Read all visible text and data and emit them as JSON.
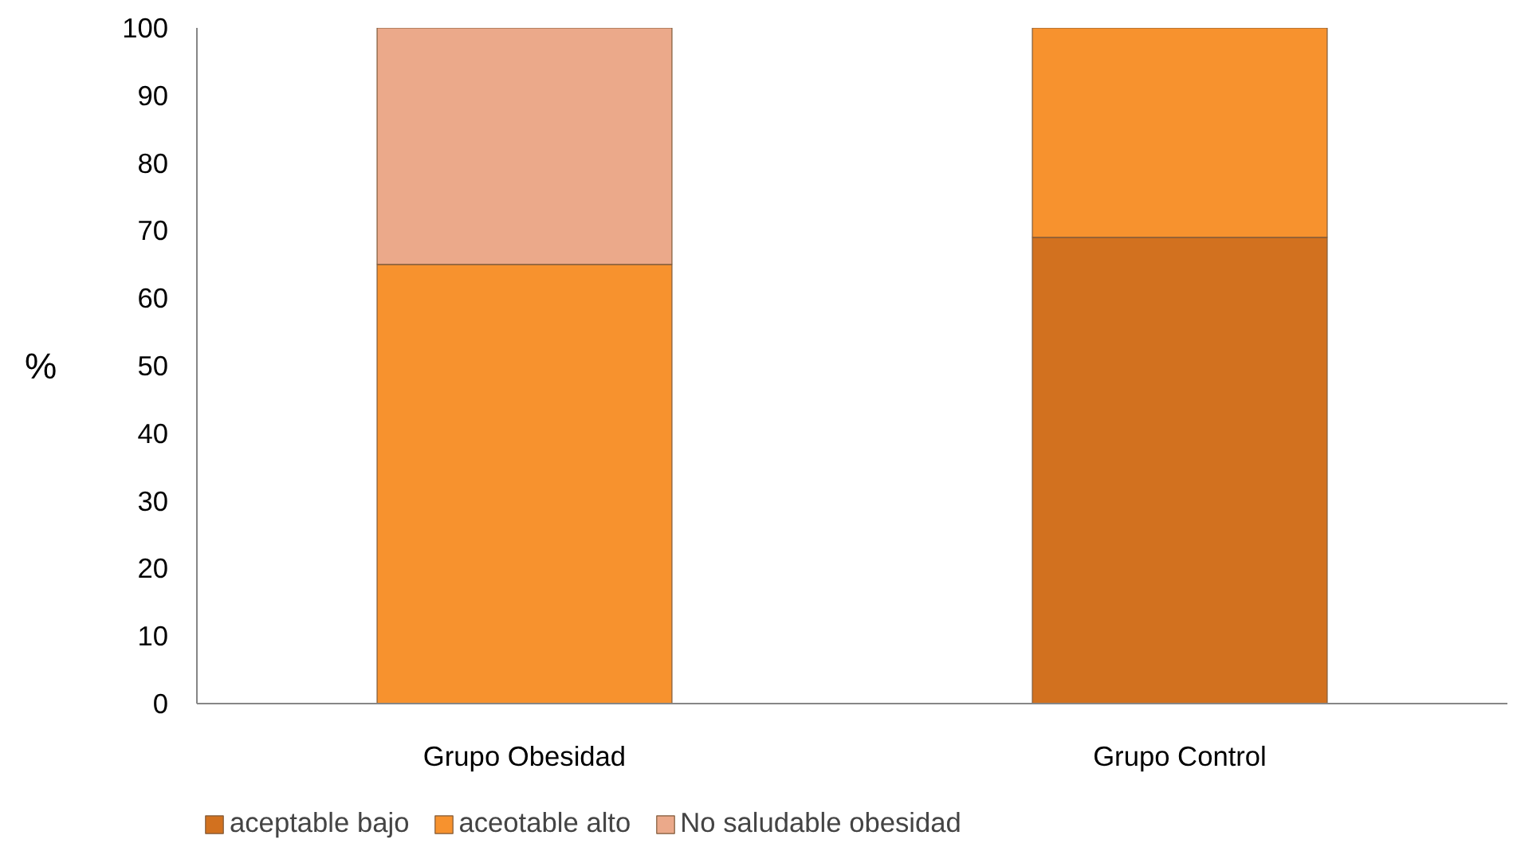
{
  "chart_data": {
    "type": "bar",
    "stacked": true,
    "categories": [
      "Grupo Obesidad",
      "Grupo Control"
    ],
    "ylabel": "%",
    "ylim": [
      0,
      100
    ],
    "yticks": [
      0,
      10,
      20,
      30,
      40,
      50,
      60,
      70,
      80,
      90,
      100
    ],
    "grid": false,
    "legend": "bottom",
    "series": [
      {
        "name": "aceptable bajo",
        "color": "#d2711f",
        "values": [
          0,
          69
        ]
      },
      {
        "name": "aceotable alto",
        "color": "#f7922e",
        "values": [
          65,
          31
        ]
      },
      {
        "name": "No saludable obesidad",
        "color": "#eba98a",
        "values": [
          35,
          0
        ]
      }
    ]
  }
}
